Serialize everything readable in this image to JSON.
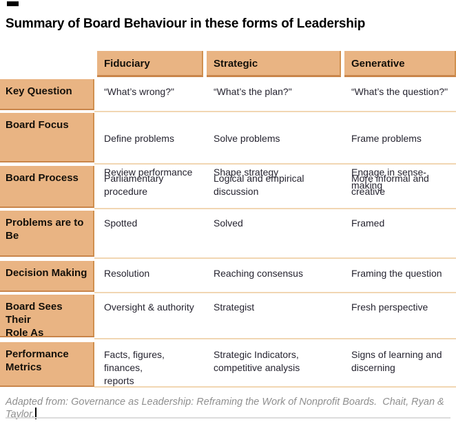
{
  "title": "Summary of Board Behaviour in these forms of Leadership",
  "table": {
    "columns": [
      "Fiduciary",
      "Strategic",
      "Generative"
    ],
    "rows": [
      {
        "label": "Key Question",
        "cells": [
          [
            "“What’s wrong?\""
          ],
          [
            "“What’s the plan?\""
          ],
          [
            "“What’s the question?\""
          ]
        ]
      },
      {
        "label": "Board Focus",
        "cells": [
          [
            "Define problems",
            "Review performance"
          ],
          [
            "Solve problems",
            "Shape strategy"
          ],
          [
            "Frame problems",
            "Engage in sense-making"
          ]
        ]
      },
      {
        "label": "Board Process",
        "cells": [
          [
            "Parliamentary\nprocedure"
          ],
          [
            "Logical and empirical\ndiscussion"
          ],
          [
            "More informal and\ncreative"
          ]
        ]
      },
      {
        "label": "Problems are to\nBe",
        "cells": [
          [
            "Spotted"
          ],
          [
            "Solved"
          ],
          [
            "Framed"
          ]
        ]
      },
      {
        "label": "Decision Making",
        "cells": [
          [
            "Resolution"
          ],
          [
            "Reaching consensus"
          ],
          [
            "Framing the question"
          ]
        ]
      },
      {
        "label": "Board Sees Their\nRole As",
        "cells": [
          [
            "Oversight & authority"
          ],
          [
            "Strategist"
          ],
          [
            "Fresh perspective"
          ]
        ]
      },
      {
        "label": "Performance\nMetrics",
        "cells": [
          [
            "Facts, figures, finances,\nreports"
          ],
          [
            "Strategic Indicators,\ncompetitive analysis"
          ],
          [
            "Signs of learning and\ndiscerning"
          ]
        ]
      }
    ]
  },
  "footer": {
    "citation": "Adapted from: Governance as Leadership: Reframing the Work of Nonprofit Boards.  Chait, Ryan & Taylor."
  },
  "colors": {
    "cell_tan": "#E9B483",
    "cell_border_dark": "#C9854A",
    "row_divider": "#F1D6B2",
    "footer_gray": "#8f8f8f",
    "bottom_rule": "#dcdcdc"
  }
}
